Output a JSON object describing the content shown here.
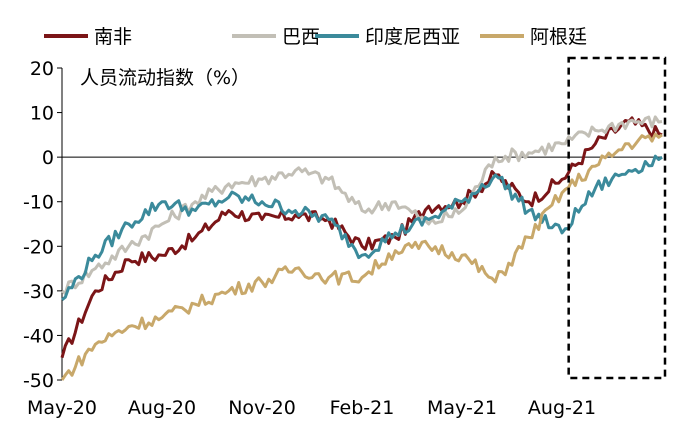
{
  "chart_data": {
    "type": "line",
    "title": "",
    "ylabel": "人员流动指数（%）",
    "xlabel": "",
    "ylim": [
      -50,
      20
    ],
    "yticks": [
      -50,
      -40,
      -30,
      -20,
      -10,
      0,
      10,
      20
    ],
    "xtick_labels": [
      "May-20",
      "Aug-20",
      "Nov-20",
      "Feb-21",
      "May-21",
      "Aug-21"
    ],
    "x": [
      "2020-05",
      "2020-06",
      "2020-07",
      "2020-08",
      "2020-09",
      "2020-10",
      "2020-11",
      "2020-12",
      "2021-01",
      "2021-02",
      "2021-03",
      "2021-04",
      "2021-05",
      "2021-06",
      "2021-07",
      "2021-08",
      "2021-09",
      "2021-10",
      "2021-11"
    ],
    "legend_position": "top",
    "grid": false,
    "highlight_box": {
      "from": "2021-10",
      "to": "2021-11",
      "style": "dashed"
    },
    "series": [
      {
        "name": "南非",
        "color": "#7b1517",
        "values": [
          -45,
          -30,
          -23,
          -22,
          -18,
          -12,
          -14,
          -13,
          -14,
          -20,
          -18,
          -11,
          -10,
          -4,
          -10,
          -5,
          3,
          8,
          5
        ]
      },
      {
        "name": "巴西",
        "color": "#c2bfb6",
        "values": [
          -30,
          -25,
          -20,
          -15,
          -10,
          -6,
          -5,
          -3,
          -5,
          -12,
          -10,
          -15,
          -12,
          0,
          1,
          3,
          6,
          8,
          8
        ]
      },
      {
        "name": "印度尼西亚",
        "color": "#3b8a9b",
        "values": [
          -32,
          -22,
          -15,
          -10,
          -12,
          -9,
          -10,
          -12,
          -14,
          -22,
          -17,
          -14,
          -10,
          -4,
          -12,
          -17,
          -7,
          -3,
          0
        ]
      },
      {
        "name": "阿根廷",
        "color": "#c8a86a",
        "values": [
          -50,
          -42,
          -38,
          -36,
          -33,
          -30,
          -28,
          -25,
          -27,
          -27,
          -21,
          -20,
          -22,
          -28,
          -18,
          -8,
          -2,
          3,
          5
        ]
      }
    ]
  }
}
